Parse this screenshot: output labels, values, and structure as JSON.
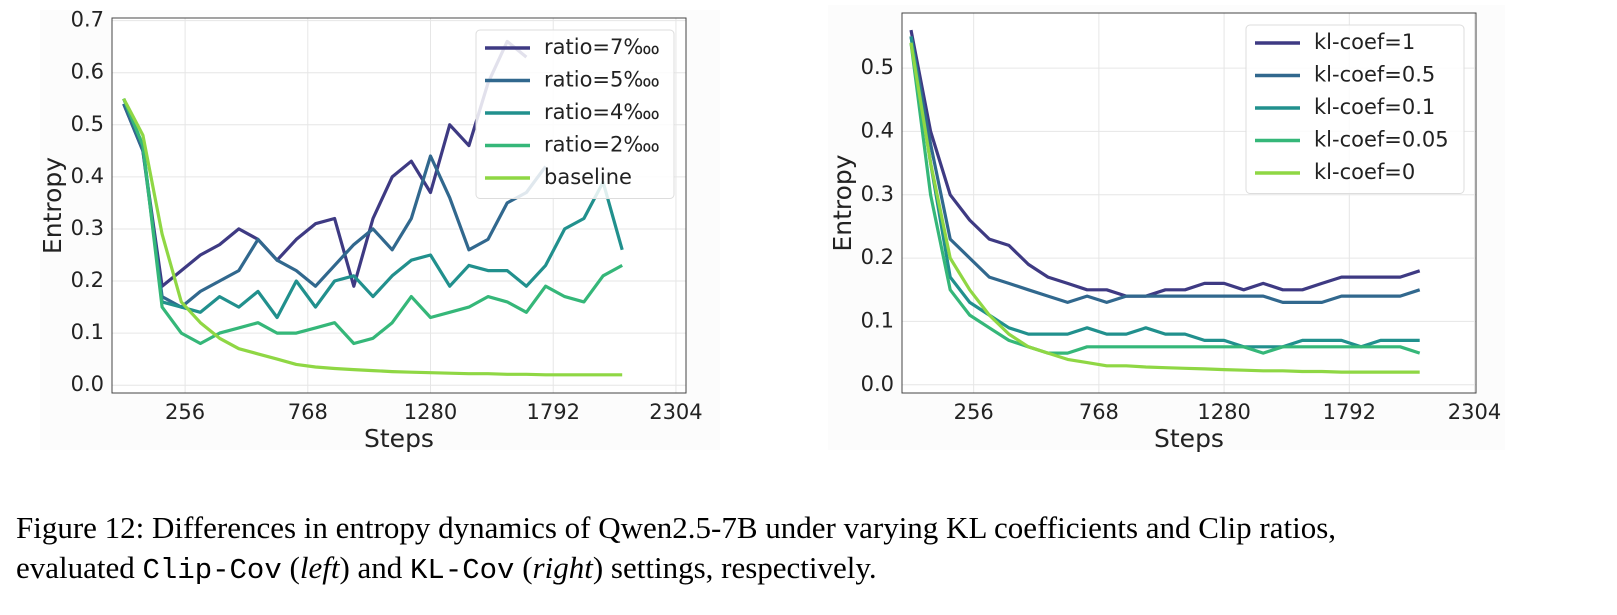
{
  "chart_data": [
    {
      "type": "line",
      "xlabel": "Steps",
      "ylabel": "Entropy",
      "x": [
        0,
        80,
        160,
        240,
        320,
        400,
        480,
        560,
        640,
        720,
        800,
        880,
        960,
        1040,
        1120,
        1200,
        1280,
        1360,
        1440,
        1520,
        1600,
        1680,
        1760,
        1840,
        1920,
        2000,
        2080
      ],
      "xlim": [
        -49,
        2346
      ],
      "ylim": [
        -0.015,
        0.705
      ],
      "xticks": [
        256,
        768,
        1280,
        1792,
        2304
      ],
      "yticks": [
        {
          "value": 0,
          "label": "0.0"
        },
        0.1,
        0.2,
        0.3,
        0.4,
        0.5,
        0.6,
        0.7
      ],
      "grid": true,
      "legend": "upper right",
      "series": [
        {
          "name": "ratio=7‱",
          "color": "#3e3a83",
          "values": [
            0.54,
            0.45,
            0.19,
            0.22,
            0.25,
            0.27,
            0.3,
            0.28,
            0.24,
            0.28,
            0.31,
            0.32,
            0.19,
            0.32,
            0.4,
            0.43,
            0.37,
            0.5,
            0.46,
            0.58,
            0.66,
            0.63,
            null,
            null,
            null,
            null,
            null
          ]
        },
        {
          "name": "ratio=5‱",
          "color": "#31688e",
          "values": [
            0.54,
            0.45,
            0.17,
            0.15,
            0.18,
            0.2,
            0.22,
            0.28,
            0.24,
            0.22,
            0.19,
            0.23,
            0.27,
            0.3,
            0.26,
            0.32,
            0.44,
            0.36,
            0.26,
            0.28,
            0.35,
            0.37,
            0.42,
            null,
            null,
            null,
            null
          ]
        },
        {
          "name": "ratio=4‱",
          "color": "#21908d",
          "values": [
            0.55,
            0.46,
            0.16,
            0.15,
            0.14,
            0.17,
            0.15,
            0.18,
            0.13,
            0.2,
            0.15,
            0.2,
            0.21,
            0.17,
            0.21,
            0.24,
            0.25,
            0.19,
            0.23,
            0.22,
            0.22,
            0.19,
            0.23,
            0.3,
            0.32,
            0.39,
            0.26
          ]
        },
        {
          "name": "ratio=2‱",
          "color": "#35b779",
          "values": [
            0.55,
            0.46,
            0.15,
            0.1,
            0.08,
            0.1,
            0.11,
            0.12,
            0.1,
            0.1,
            0.11,
            0.12,
            0.08,
            0.09,
            0.12,
            0.17,
            0.13,
            0.14,
            0.15,
            0.17,
            0.16,
            0.14,
            0.19,
            0.17,
            0.16,
            0.21,
            0.23
          ]
        },
        {
          "name": "baseline",
          "color": "#8fd744",
          "values": [
            0.55,
            0.48,
            0.29,
            0.16,
            0.12,
            0.09,
            0.07,
            0.06,
            0.05,
            0.04,
            0.035,
            0.032,
            0.03,
            0.028,
            0.026,
            0.025,
            0.024,
            0.023,
            0.022,
            0.022,
            0.021,
            0.021,
            0.02,
            0.02,
            0.02,
            0.02,
            0.02
          ]
        }
      ]
    },
    {
      "type": "line",
      "xlabel": "Steps",
      "ylabel": "Entropy",
      "x": [
        0,
        80,
        160,
        240,
        320,
        400,
        480,
        560,
        640,
        720,
        800,
        880,
        960,
        1040,
        1120,
        1200,
        1280,
        1360,
        1440,
        1520,
        1600,
        1680,
        1760,
        1840,
        1920,
        2000,
        2080
      ],
      "xlim": [
        -37,
        2310
      ],
      "ylim": [
        -0.013,
        0.587
      ],
      "xticks": [
        256,
        768,
        1280,
        1792,
        2304
      ],
      "yticks": [
        {
          "value": 0,
          "label": "0.0"
        },
        0.1,
        0.2,
        0.3,
        0.4,
        0.5
      ],
      "grid": true,
      "legend": "upper right",
      "series": [
        {
          "name": "kl-coef=1",
          "color": "#3e3a83",
          "values": [
            0.56,
            0.4,
            0.3,
            0.26,
            0.23,
            0.22,
            0.19,
            0.17,
            0.16,
            0.15,
            0.15,
            0.14,
            0.14,
            0.15,
            0.15,
            0.16,
            0.16,
            0.15,
            0.16,
            0.15,
            0.15,
            0.16,
            0.17,
            0.17,
            0.17,
            0.17,
            0.18
          ]
        },
        {
          "name": "kl-coef=0.5",
          "color": "#31688e",
          "values": [
            0.55,
            0.38,
            0.23,
            0.2,
            0.17,
            0.16,
            0.15,
            0.14,
            0.13,
            0.14,
            0.13,
            0.14,
            0.14,
            0.14,
            0.14,
            0.14,
            0.14,
            0.14,
            0.14,
            0.13,
            0.13,
            0.13,
            0.14,
            0.14,
            0.14,
            0.14,
            0.15
          ]
        },
        {
          "name": "kl-coef=0.1",
          "color": "#21908d",
          "values": [
            0.55,
            0.35,
            0.17,
            0.13,
            0.11,
            0.09,
            0.08,
            0.08,
            0.08,
            0.09,
            0.08,
            0.08,
            0.09,
            0.08,
            0.08,
            0.07,
            0.07,
            0.06,
            0.06,
            0.06,
            0.07,
            0.07,
            0.07,
            0.06,
            0.07,
            0.07,
            0.07
          ]
        },
        {
          "name": "kl-coef=0.05",
          "color": "#35b779",
          "values": [
            0.54,
            0.3,
            0.15,
            0.11,
            0.09,
            0.07,
            0.06,
            0.05,
            0.05,
            0.06,
            0.06,
            0.06,
            0.06,
            0.06,
            0.06,
            0.06,
            0.06,
            0.06,
            0.05,
            0.06,
            0.06,
            0.06,
            0.06,
            0.06,
            0.06,
            0.06,
            0.05
          ]
        },
        {
          "name": "kl-coef=0",
          "color": "#8fd744",
          "values": [
            0.54,
            0.35,
            0.2,
            0.15,
            0.11,
            0.08,
            0.06,
            0.05,
            0.04,
            0.035,
            0.03,
            0.03,
            0.028,
            0.027,
            0.026,
            0.025,
            0.024,
            0.023,
            0.022,
            0.022,
            0.021,
            0.021,
            0.02,
            0.02,
            0.02,
            0.02,
            0.02
          ]
        }
      ]
    }
  ],
  "caption": {
    "line1": "Figure 12: Differences in entropy dynamics of Qwen2.5-7B under varying KL coefficients and Clip ratios,",
    "line2": [
      "evaluated ",
      "Clip-Cov",
      " (",
      "left",
      ") and ",
      "KL-Cov",
      " (",
      "right",
      ") settings, respectively."
    ]
  }
}
